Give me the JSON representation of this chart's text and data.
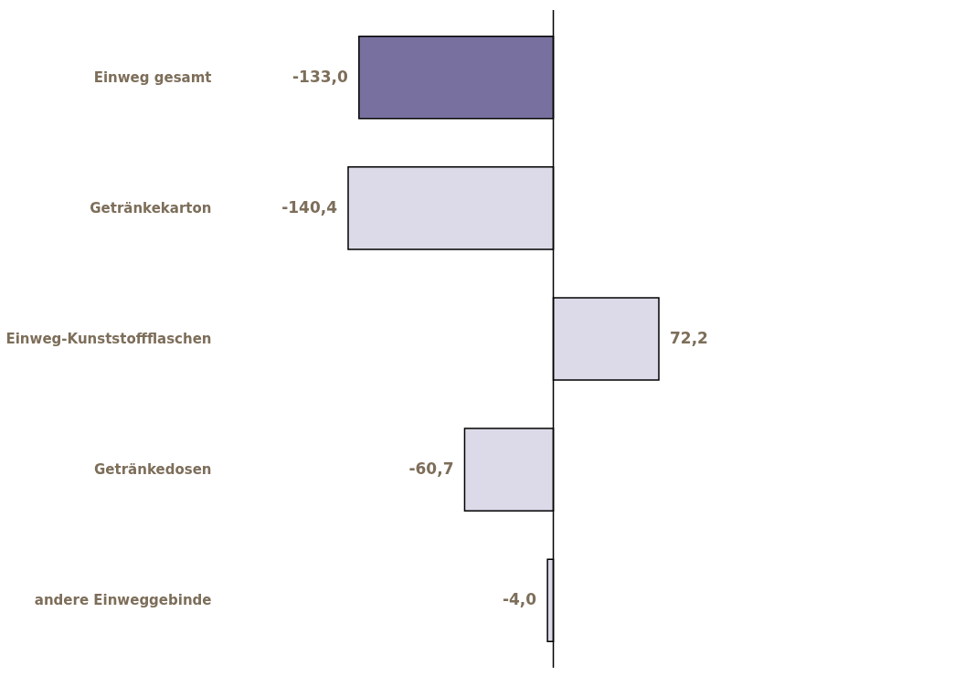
{
  "chart_data": {
    "type": "bar",
    "orientation": "horizontal",
    "categories": [
      "Einweg gesamt",
      "Getränkekarton",
      "Einweg-Kunststoffflaschen",
      "Getränkedosen",
      "andere Einweggebinde"
    ],
    "values": [
      -133.0,
      -140.4,
      72.2,
      -60.7,
      -4.0
    ],
    "colors": [
      "#78709e",
      "#dcdae8",
      "#dcdae8",
      "#dcdae8",
      "#dcdae8"
    ],
    "value_labels": [
      "-133,0",
      "-140,4",
      "72,2",
      "-60,7",
      "-4,0"
    ],
    "grid": false
  }
}
